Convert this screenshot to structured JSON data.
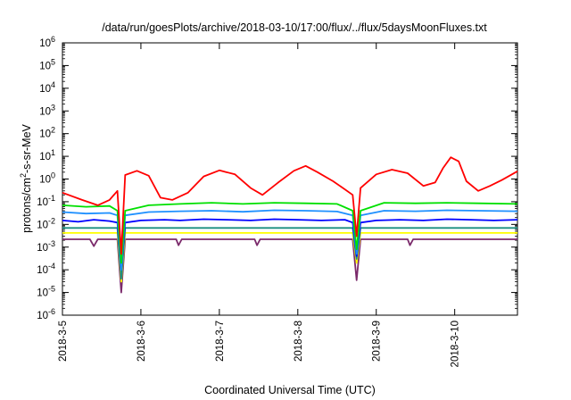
{
  "chart_data": {
    "type": "line",
    "title": "/data/run/goesPlots/archive/2018-03-10/17:00/flux/../flux/5daysMoonFluxes.txt",
    "xlabel": "Coordinated Universal Time (UTC)",
    "ylabel": {
      "prefix": "protons/cm",
      "sup": "2",
      "suffix": "-s-sr-MeV"
    },
    "y_scale": "log",
    "ylim": [
      1e-06,
      1000000.0
    ],
    "xlim": [
      0,
      5.8
    ],
    "grid": false,
    "legend": "none",
    "y_ticks": [
      {
        "v": 1e-06,
        "base": "10",
        "exp": "-6"
      },
      {
        "v": 1e-05,
        "base": "10",
        "exp": "-5"
      },
      {
        "v": 0.0001,
        "base": "10",
        "exp": "-4"
      },
      {
        "v": 0.001,
        "base": "10",
        "exp": "-3"
      },
      {
        "v": 0.01,
        "base": "10",
        "exp": "-2"
      },
      {
        "v": 0.1,
        "base": "10",
        "exp": "-1"
      },
      {
        "v": 1,
        "base": "10",
        "exp": "0"
      },
      {
        "v": 10.0,
        "base": "10",
        "exp": "1"
      },
      {
        "v": 100.0,
        "base": "10",
        "exp": "2"
      },
      {
        "v": 1000.0,
        "base": "10",
        "exp": "3"
      },
      {
        "v": 10000.0,
        "base": "10",
        "exp": "4"
      },
      {
        "v": 100000.0,
        "base": "10",
        "exp": "5"
      },
      {
        "v": 1000000.0,
        "base": "10",
        "exp": "6"
      }
    ],
    "x_ticks": [
      {
        "v": 0,
        "label": "2018-3-5"
      },
      {
        "v": 1,
        "label": "2018-3-6"
      },
      {
        "v": 2,
        "label": "2018-3-7"
      },
      {
        "v": 3,
        "label": "2018-3-8"
      },
      {
        "v": 4,
        "label": "2018-3-9"
      },
      {
        "v": 5,
        "label": "2018-3-10"
      }
    ],
    "series": [
      {
        "color": "#7b2a6b",
        "points": [
          [
            0,
            0.0022
          ],
          [
            0.35,
            0.0022
          ],
          [
            0.4,
            0.0011
          ],
          [
            0.45,
            0.0022
          ],
          [
            0.7,
            0.0022
          ],
          [
            0.75,
            1e-05
          ],
          [
            0.8,
            0.0022
          ],
          [
            1.45,
            0.0022
          ],
          [
            1.48,
            0.0012
          ],
          [
            1.52,
            0.0022
          ],
          [
            2.0,
            0.0022
          ],
          [
            2.45,
            0.0022
          ],
          [
            2.48,
            0.0012
          ],
          [
            2.52,
            0.0022
          ],
          [
            3.3,
            0.0022
          ],
          [
            3.7,
            0.0022
          ],
          [
            3.75,
            3.5e-05
          ],
          [
            3.8,
            0.0022
          ],
          [
            4.4,
            0.0022
          ],
          [
            4.43,
            0.0012
          ],
          [
            4.47,
            0.0022
          ],
          [
            5.0,
            0.0022
          ],
          [
            5.8,
            0.0022
          ]
        ]
      },
      {
        "color": "#ffff00",
        "points": [
          [
            0,
            0.0042
          ],
          [
            0.7,
            0.0042
          ],
          [
            0.75,
            3e-05
          ],
          [
            0.8,
            0.0042
          ],
          [
            3.7,
            0.0042
          ],
          [
            3.75,
            0.0002
          ],
          [
            3.8,
            0.0042
          ],
          [
            5.8,
            0.0042
          ]
        ]
      },
      {
        "color": "#1a8f80",
        "points": [
          [
            0,
            0.007
          ],
          [
            0.7,
            0.007
          ],
          [
            0.75,
            4e-05
          ],
          [
            0.8,
            0.007
          ],
          [
            2.0,
            0.007
          ],
          [
            3.7,
            0.007
          ],
          [
            3.75,
            0.0003
          ],
          [
            3.8,
            0.007
          ],
          [
            5.8,
            0.007
          ]
        ]
      },
      {
        "color": "#0000ff",
        "points": [
          [
            0,
            0.015
          ],
          [
            0.2,
            0.013
          ],
          [
            0.4,
            0.016
          ],
          [
            0.6,
            0.014
          ],
          [
            0.7,
            0.012
          ],
          [
            0.75,
            0.0001
          ],
          [
            0.8,
            0.012
          ],
          [
            1.0,
            0.015
          ],
          [
            1.3,
            0.016
          ],
          [
            1.5,
            0.015
          ],
          [
            1.8,
            0.017
          ],
          [
            2.1,
            0.016
          ],
          [
            2.4,
            0.015
          ],
          [
            2.7,
            0.017
          ],
          [
            3.0,
            0.016
          ],
          [
            3.3,
            0.015
          ],
          [
            3.6,
            0.016
          ],
          [
            3.7,
            0.012
          ],
          [
            3.75,
            0.0004
          ],
          [
            3.8,
            0.012
          ],
          [
            4.0,
            0.015
          ],
          [
            4.3,
            0.016
          ],
          [
            4.6,
            0.015
          ],
          [
            4.9,
            0.017
          ],
          [
            5.2,
            0.016
          ],
          [
            5.5,
            0.015
          ],
          [
            5.8,
            0.016
          ]
        ]
      },
      {
        "color": "#1e90ff",
        "points": [
          [
            0,
            0.035
          ],
          [
            0.3,
            0.03
          ],
          [
            0.6,
            0.032
          ],
          [
            0.7,
            0.025
          ],
          [
            0.75,
            0.0001
          ],
          [
            0.8,
            0.025
          ],
          [
            1.1,
            0.035
          ],
          [
            1.5,
            0.038
          ],
          [
            1.9,
            0.04
          ],
          [
            2.3,
            0.036
          ],
          [
            2.7,
            0.042
          ],
          [
            3.1,
            0.04
          ],
          [
            3.5,
            0.037
          ],
          [
            3.7,
            0.025
          ],
          [
            3.75,
            0.0005
          ],
          [
            3.8,
            0.025
          ],
          [
            4.1,
            0.04
          ],
          [
            4.5,
            0.038
          ],
          [
            4.9,
            0.042
          ],
          [
            5.3,
            0.04
          ],
          [
            5.8,
            0.038
          ]
        ]
      },
      {
        "color": "#00e000",
        "points": [
          [
            0,
            0.07
          ],
          [
            0.3,
            0.06
          ],
          [
            0.6,
            0.065
          ],
          [
            0.7,
            0.04
          ],
          [
            0.75,
            0.0002
          ],
          [
            0.8,
            0.04
          ],
          [
            1.1,
            0.07
          ],
          [
            1.5,
            0.08
          ],
          [
            1.9,
            0.09
          ],
          [
            2.3,
            0.08
          ],
          [
            2.7,
            0.09
          ],
          [
            3.1,
            0.085
          ],
          [
            3.5,
            0.08
          ],
          [
            3.7,
            0.04
          ],
          [
            3.75,
            0.0008
          ],
          [
            3.8,
            0.04
          ],
          [
            4.1,
            0.09
          ],
          [
            4.5,
            0.085
          ],
          [
            4.9,
            0.09
          ],
          [
            5.3,
            0.085
          ],
          [
            5.8,
            0.08
          ]
        ]
      },
      {
        "color": "#ff0000",
        "points": [
          [
            0,
            0.25
          ],
          [
            0.25,
            0.12
          ],
          [
            0.45,
            0.07
          ],
          [
            0.6,
            0.12
          ],
          [
            0.7,
            0.3
          ],
          [
            0.75,
            0.0005
          ],
          [
            0.8,
            1.5
          ],
          [
            0.95,
            2.3
          ],
          [
            1.1,
            1.4
          ],
          [
            1.25,
            0.15
          ],
          [
            1.4,
            0.12
          ],
          [
            1.6,
            0.25
          ],
          [
            1.8,
            1.3
          ],
          [
            2.0,
            2.4
          ],
          [
            2.2,
            1.6
          ],
          [
            2.4,
            0.4
          ],
          [
            2.55,
            0.2
          ],
          [
            2.75,
            0.7
          ],
          [
            2.95,
            2.3
          ],
          [
            3.1,
            3.8
          ],
          [
            3.25,
            2.0
          ],
          [
            3.45,
            0.8
          ],
          [
            3.6,
            0.35
          ],
          [
            3.7,
            0.2
          ],
          [
            3.75,
            0.003
          ],
          [
            3.8,
            0.4
          ],
          [
            4.0,
            1.6
          ],
          [
            4.2,
            2.6
          ],
          [
            4.4,
            1.8
          ],
          [
            4.6,
            0.5
          ],
          [
            4.75,
            0.7
          ],
          [
            4.85,
            3.0
          ],
          [
            4.95,
            9.0
          ],
          [
            5.05,
            6.0
          ],
          [
            5.15,
            0.8
          ],
          [
            5.3,
            0.3
          ],
          [
            5.45,
            0.5
          ],
          [
            5.6,
            0.9
          ],
          [
            5.8,
            2.2
          ]
        ]
      }
    ]
  }
}
